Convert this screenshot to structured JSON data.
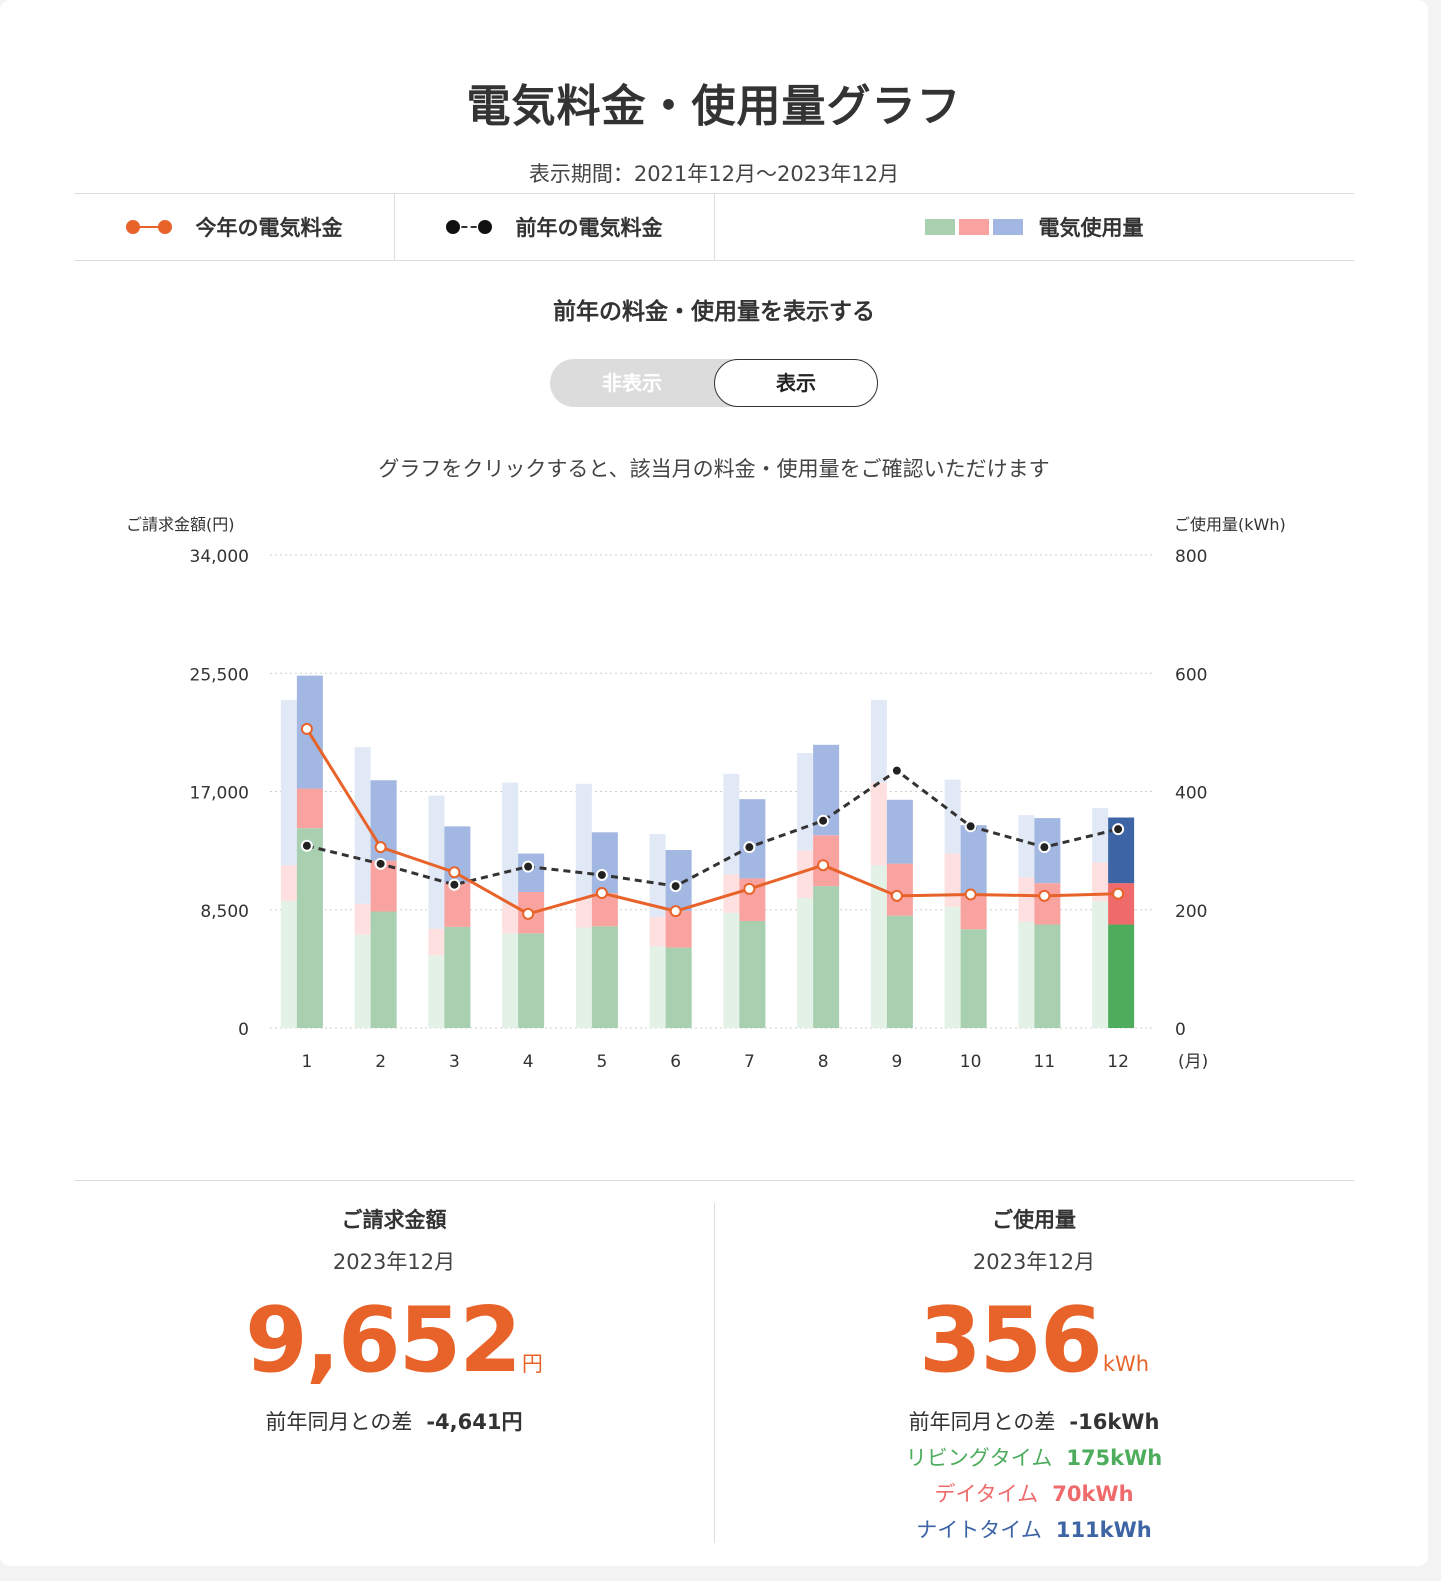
{
  "page": {
    "title": "電気料金・使用量グラフ",
    "period": "表示期間：2021年12月〜2023年12月",
    "hint": "グラフをクリックすると、該当月の料金・使用量をご確認いただけます"
  },
  "legend": {
    "current_year": "今年の電気料金",
    "previous_year": "前年の電気料金",
    "usage": "電気使用量"
  },
  "toggle": {
    "heading": "前年の料金・使用量を表示する",
    "off_label": "非表示",
    "on_label": "表示",
    "selected": "表示"
  },
  "colors": {
    "current_line": "#e8632a",
    "previous_line": "#333333",
    "living": "#a8cfb0",
    "day": "#f9a3a1",
    "night": "#a2b7e1",
    "living_selected": "#4eac5d",
    "day_selected": "#ef6b6b",
    "night_selected": "#3d64a5"
  },
  "chart_data": {
    "type": "bar",
    "left_axis_label": "ご請求金額(円)",
    "right_axis_label": "ご使用量(kWh)",
    "x_unit": "(月)",
    "categories": [
      "1",
      "2",
      "3",
      "4",
      "5",
      "6",
      "7",
      "8",
      "9",
      "10",
      "11",
      "12"
    ],
    "left_ticks": [
      "0",
      "8,500",
      "17,000",
      "25,500",
      "34,000"
    ],
    "right_ticks": [
      "0",
      "200",
      "400",
      "600",
      "800"
    ],
    "ylim_left": [
      0,
      34000
    ],
    "ylim_right": [
      0,
      800
    ],
    "grid": true,
    "selected_month": "12",
    "series": [
      {
        "name": "今年の電気料金",
        "kind": "line",
        "axis": "left",
        "values": [
          21500,
          13000,
          11200,
          8200,
          9700,
          8400,
          10000,
          11700,
          9500,
          9600,
          9500,
          9652
        ]
      },
      {
        "name": "前年の電気料金",
        "kind": "line",
        "axis": "left",
        "values": [
          13100,
          11800,
          10300,
          11600,
          11000,
          10200,
          13000,
          14900,
          18500,
          14500,
          13000,
          14293
        ]
      },
      {
        "name": "リビングタイム",
        "kind": "stacked-bar",
        "axis": "right",
        "values": [
          338,
          197,
          171,
          160,
          172,
          136,
          181,
          240,
          190,
          167,
          175,
          175
        ]
      },
      {
        "name": "デイタイム",
        "kind": "stacked-bar",
        "axis": "right",
        "values": [
          67,
          86,
          75,
          70,
          56,
          62,
          72,
          86,
          88,
          60,
          70,
          70
        ]
      },
      {
        "name": "ナイトタイム",
        "kind": "stacked-bar",
        "axis": "right",
        "values": [
          191,
          136,
          95,
          65,
          103,
          103,
          134,
          153,
          108,
          116,
          110,
          111
        ]
      },
      {
        "name": "前年リビングタイム",
        "kind": "stacked-bar",
        "axis": "right",
        "values": [
          215,
          158,
          123,
          160,
          170,
          138,
          195,
          220,
          275,
          205,
          180,
          215
        ]
      },
      {
        "name": "前年デイタイム",
        "kind": "stacked-bar",
        "axis": "right",
        "values": [
          60,
          52,
          45,
          50,
          48,
          50,
          65,
          80,
          140,
          90,
          75,
          65
        ]
      },
      {
        "name": "前年ナイトタイム",
        "kind": "stacked-bar",
        "axis": "right",
        "values": [
          280,
          265,
          225,
          205,
          195,
          140,
          170,
          165,
          140,
          125,
          105,
          92
        ]
      }
    ]
  },
  "summary": {
    "billing": {
      "label": "ご請求金額",
      "month": "2023年12月",
      "value": "9,652",
      "unit": "円",
      "diff_label": "前年同月との差",
      "diff_value": "-4,641円"
    },
    "usage": {
      "label": "ご使用量",
      "month": "2023年12月",
      "value": "356",
      "unit": "kWh",
      "diff_label": "前年同月との差",
      "diff_value": "-16kWh",
      "living_label": "リビングタイム",
      "living_value": "175kWh",
      "day_label": "デイタイム",
      "day_value": "70kWh",
      "night_label": "ナイトタイム",
      "night_value": "111kWh"
    }
  }
}
